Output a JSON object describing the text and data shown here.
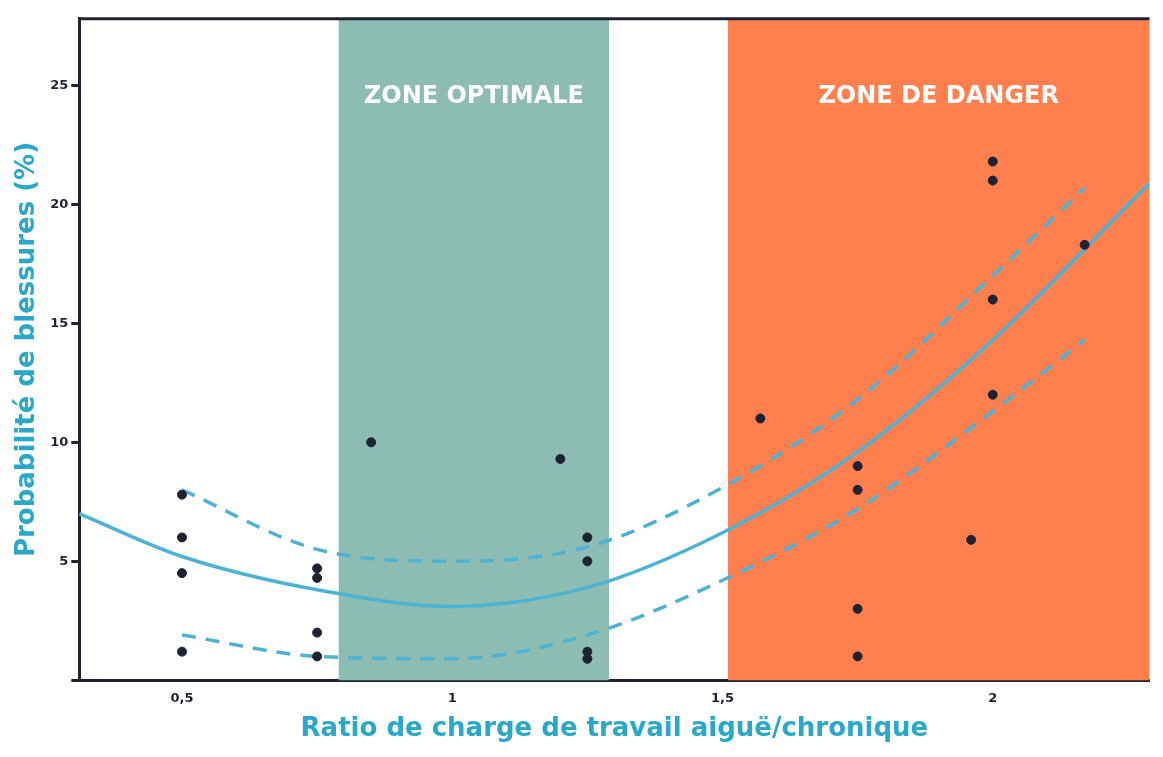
{
  "chart_data": {
    "type": "scatter",
    "xlabel": "Ratio de charge de travail aiguë/chronique",
    "ylabel": "Probabilité de blessures (%)",
    "xlim": [
      0.31,
      2.29
    ],
    "xticks": [
      {
        "value": 0.5,
        "label": "0,5"
      },
      1,
      {
        "value": 1.5,
        "label": "1,5"
      },
      2
    ],
    "ylim": [
      0,
      27.8
    ],
    "yticks": [
      {
        "value": 0,
        "label": null
      },
      5,
      10,
      15,
      20,
      25
    ],
    "grid": false,
    "legend": false,
    "bands": [
      {
        "axis": "x",
        "from": 0.79,
        "to": 1.29,
        "label": "ZONE OPTIMALE",
        "color": "#8cbcb2"
      },
      {
        "axis": "x",
        "from": 1.51,
        "to": 2.29,
        "label": "ZONE DE DANGER",
        "color": "#ff7f4e"
      }
    ],
    "series": [
      {
        "type": "line",
        "color": "#4db3d4",
        "line_style": "solid",
        "marker": "none",
        "x": [
          0.31,
          0.5,
          0.75,
          1.0,
          1.25,
          1.5,
          1.75,
          2.0,
          2.29
        ],
        "values": [
          7.0,
          5.2,
          3.8,
          3.1,
          3.9,
          6.2,
          9.6,
          14.3,
          20.9
        ]
      },
      {
        "type": "line",
        "color": "#4db3d4",
        "line_style": "dashed",
        "marker": "none",
        "x": [
          0.5,
          0.75,
          1.0,
          1.25,
          1.5,
          1.75,
          2.0,
          2.17
        ],
        "values": [
          8.0,
          5.5,
          5.0,
          5.6,
          8.1,
          11.8,
          17.0,
          20.7
        ]
      },
      {
        "type": "line",
        "color": "#4db3d4",
        "line_style": "dashed",
        "marker": "none",
        "x": [
          0.5,
          0.75,
          1.0,
          1.25,
          1.5,
          1.75,
          2.0,
          2.17
        ],
        "values": [
          1.9,
          1.0,
          0.9,
          1.9,
          4.2,
          7.2,
          11.3,
          14.3
        ]
      },
      {
        "type": "scatter",
        "color": "#1f2233",
        "marker": "circle",
        "x": [
          0.5,
          0.5,
          0.5,
          0.5,
          0.75,
          0.75,
          0.75,
          0.75,
          0.85,
          1.2,
          1.25,
          1.25,
          1.25,
          1.25,
          1.57,
          1.75,
          1.75,
          1.75,
          1.75,
          1.96,
          2,
          2,
          2,
          2,
          2.17
        ],
        "values": [
          7.8,
          6,
          4.5,
          1.2,
          4.7,
          4.3,
          2,
          1,
          10,
          9.3,
          6,
          5,
          1.2,
          0.9,
          11,
          9,
          8,
          3,
          1,
          5.9,
          21.8,
          21,
          16,
          12,
          18.3
        ]
      }
    ]
  }
}
